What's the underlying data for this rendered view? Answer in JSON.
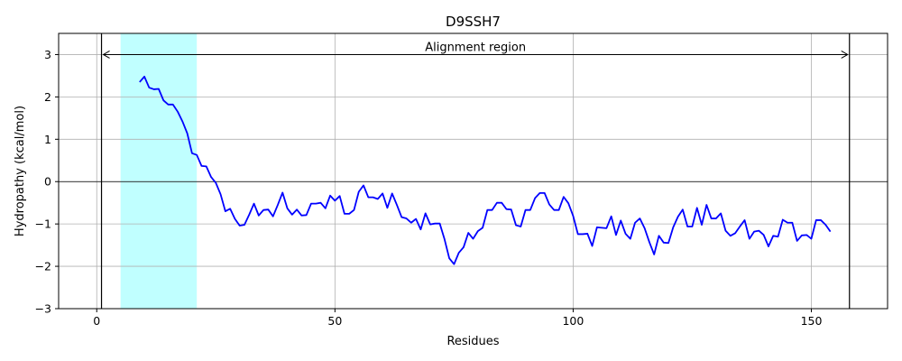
{
  "chart_data": {
    "type": "line",
    "title": "D9SSH7",
    "xlabel": "Residues",
    "ylabel": "Hydropathy (kcal/mol)",
    "xlim": [
      -8,
      166
    ],
    "ylim": [
      -3,
      3.5
    ],
    "xticks": [
      0,
      50,
      100,
      150
    ],
    "yticks": [
      -3,
      -2,
      -1,
      0,
      1,
      2,
      3
    ],
    "grid": true,
    "line_color": "#0000ff",
    "highlight_region": {
      "start": 5,
      "end": 21,
      "color": "#c0ffff"
    },
    "vertical_lines": [
      1,
      158
    ],
    "annotation": {
      "text": "Alignment region",
      "y": 3.0,
      "x_start": 1,
      "x_end": 158
    },
    "series": [
      {
        "x": [
          9,
          10,
          11,
          12,
          13,
          14,
          15,
          16,
          17,
          18,
          19,
          20,
          21,
          22,
          23,
          24,
          25,
          26,
          27,
          28,
          29,
          30,
          31,
          32,
          33,
          34,
          35,
          36,
          37,
          38,
          39,
          40,
          41,
          42,
          43,
          44,
          45,
          46,
          47,
          48,
          49,
          50,
          51,
          52,
          53,
          54,
          55,
          56,
          57,
          58,
          59,
          60,
          61,
          62,
          63,
          64,
          65,
          66,
          67,
          68,
          69,
          70,
          71,
          72,
          73,
          74,
          75,
          76,
          77,
          78,
          79,
          80,
          81,
          82,
          83,
          84,
          85,
          86,
          87,
          88,
          89,
          90,
          91,
          92,
          93,
          94,
          95,
          96,
          97,
          98,
          99,
          100,
          101,
          102,
          103,
          104,
          105,
          106,
          107,
          108,
          109,
          110,
          111,
          112,
          113,
          114,
          115,
          116,
          117,
          118,
          119,
          120,
          121,
          122,
          123,
          124,
          125,
          126,
          127,
          128,
          129,
          130,
          131,
          132,
          133,
          134,
          135,
          136,
          137,
          138,
          139,
          140,
          141,
          142,
          143,
          144,
          145,
          146,
          147,
          148,
          149,
          150,
          151,
          152,
          153,
          154
        ],
        "values": [
          2.35,
          2.48,
          2.22,
          2.18,
          2.19,
          1.92,
          1.82,
          1.82,
          1.65,
          1.42,
          1.14,
          0.67,
          0.63,
          0.37,
          0.36,
          0.11,
          -0.03,
          -0.3,
          -0.7,
          -0.64,
          -0.88,
          -1.04,
          -1.02,
          -0.78,
          -0.52,
          -0.8,
          -0.67,
          -0.66,
          -0.82,
          -0.55,
          -0.26,
          -0.63,
          -0.78,
          -0.66,
          -0.8,
          -0.79,
          -0.52,
          -0.52,
          -0.5,
          -0.63,
          -0.33,
          -0.45,
          -0.34,
          -0.76,
          -0.76,
          -0.67,
          -0.24,
          -0.09,
          -0.37,
          -0.37,
          -0.41,
          -0.28,
          -0.62,
          -0.28,
          -0.55,
          -0.84,
          -0.87,
          -0.97,
          -0.88,
          -1.13,
          -0.75,
          -1.01,
          -0.99,
          -0.99,
          -1.36,
          -1.81,
          -1.95,
          -1.68,
          -1.55,
          -1.21,
          -1.35,
          -1.17,
          -1.09,
          -0.67,
          -0.67,
          -0.5,
          -0.5,
          -0.65,
          -0.66,
          -1.03,
          -1.06,
          -0.67,
          -0.67,
          -0.39,
          -0.27,
          -0.27,
          -0.54,
          -0.67,
          -0.67,
          -0.36,
          -0.51,
          -0.81,
          -1.24,
          -1.24,
          -1.23,
          -1.52,
          -1.08,
          -1.09,
          -1.1,
          -0.82,
          -1.26,
          -0.92,
          -1.23,
          -1.35,
          -0.97,
          -0.87,
          -1.1,
          -1.43,
          -1.72,
          -1.28,
          -1.44,
          -1.45,
          -1.08,
          -0.83,
          -0.66,
          -1.06,
          -1.06,
          -0.62,
          -1.02,
          -0.55,
          -0.87,
          -0.87,
          -0.75,
          -1.16,
          -1.28,
          -1.22,
          -1.06,
          -0.91,
          -1.35,
          -1.18,
          -1.16,
          -1.26,
          -1.53,
          -1.28,
          -1.3,
          -0.9,
          -0.97,
          -0.97,
          -1.4,
          -1.27,
          -1.26,
          -1.35,
          -0.91,
          -0.91,
          -1.02,
          -1.18
        ]
      }
    ]
  }
}
